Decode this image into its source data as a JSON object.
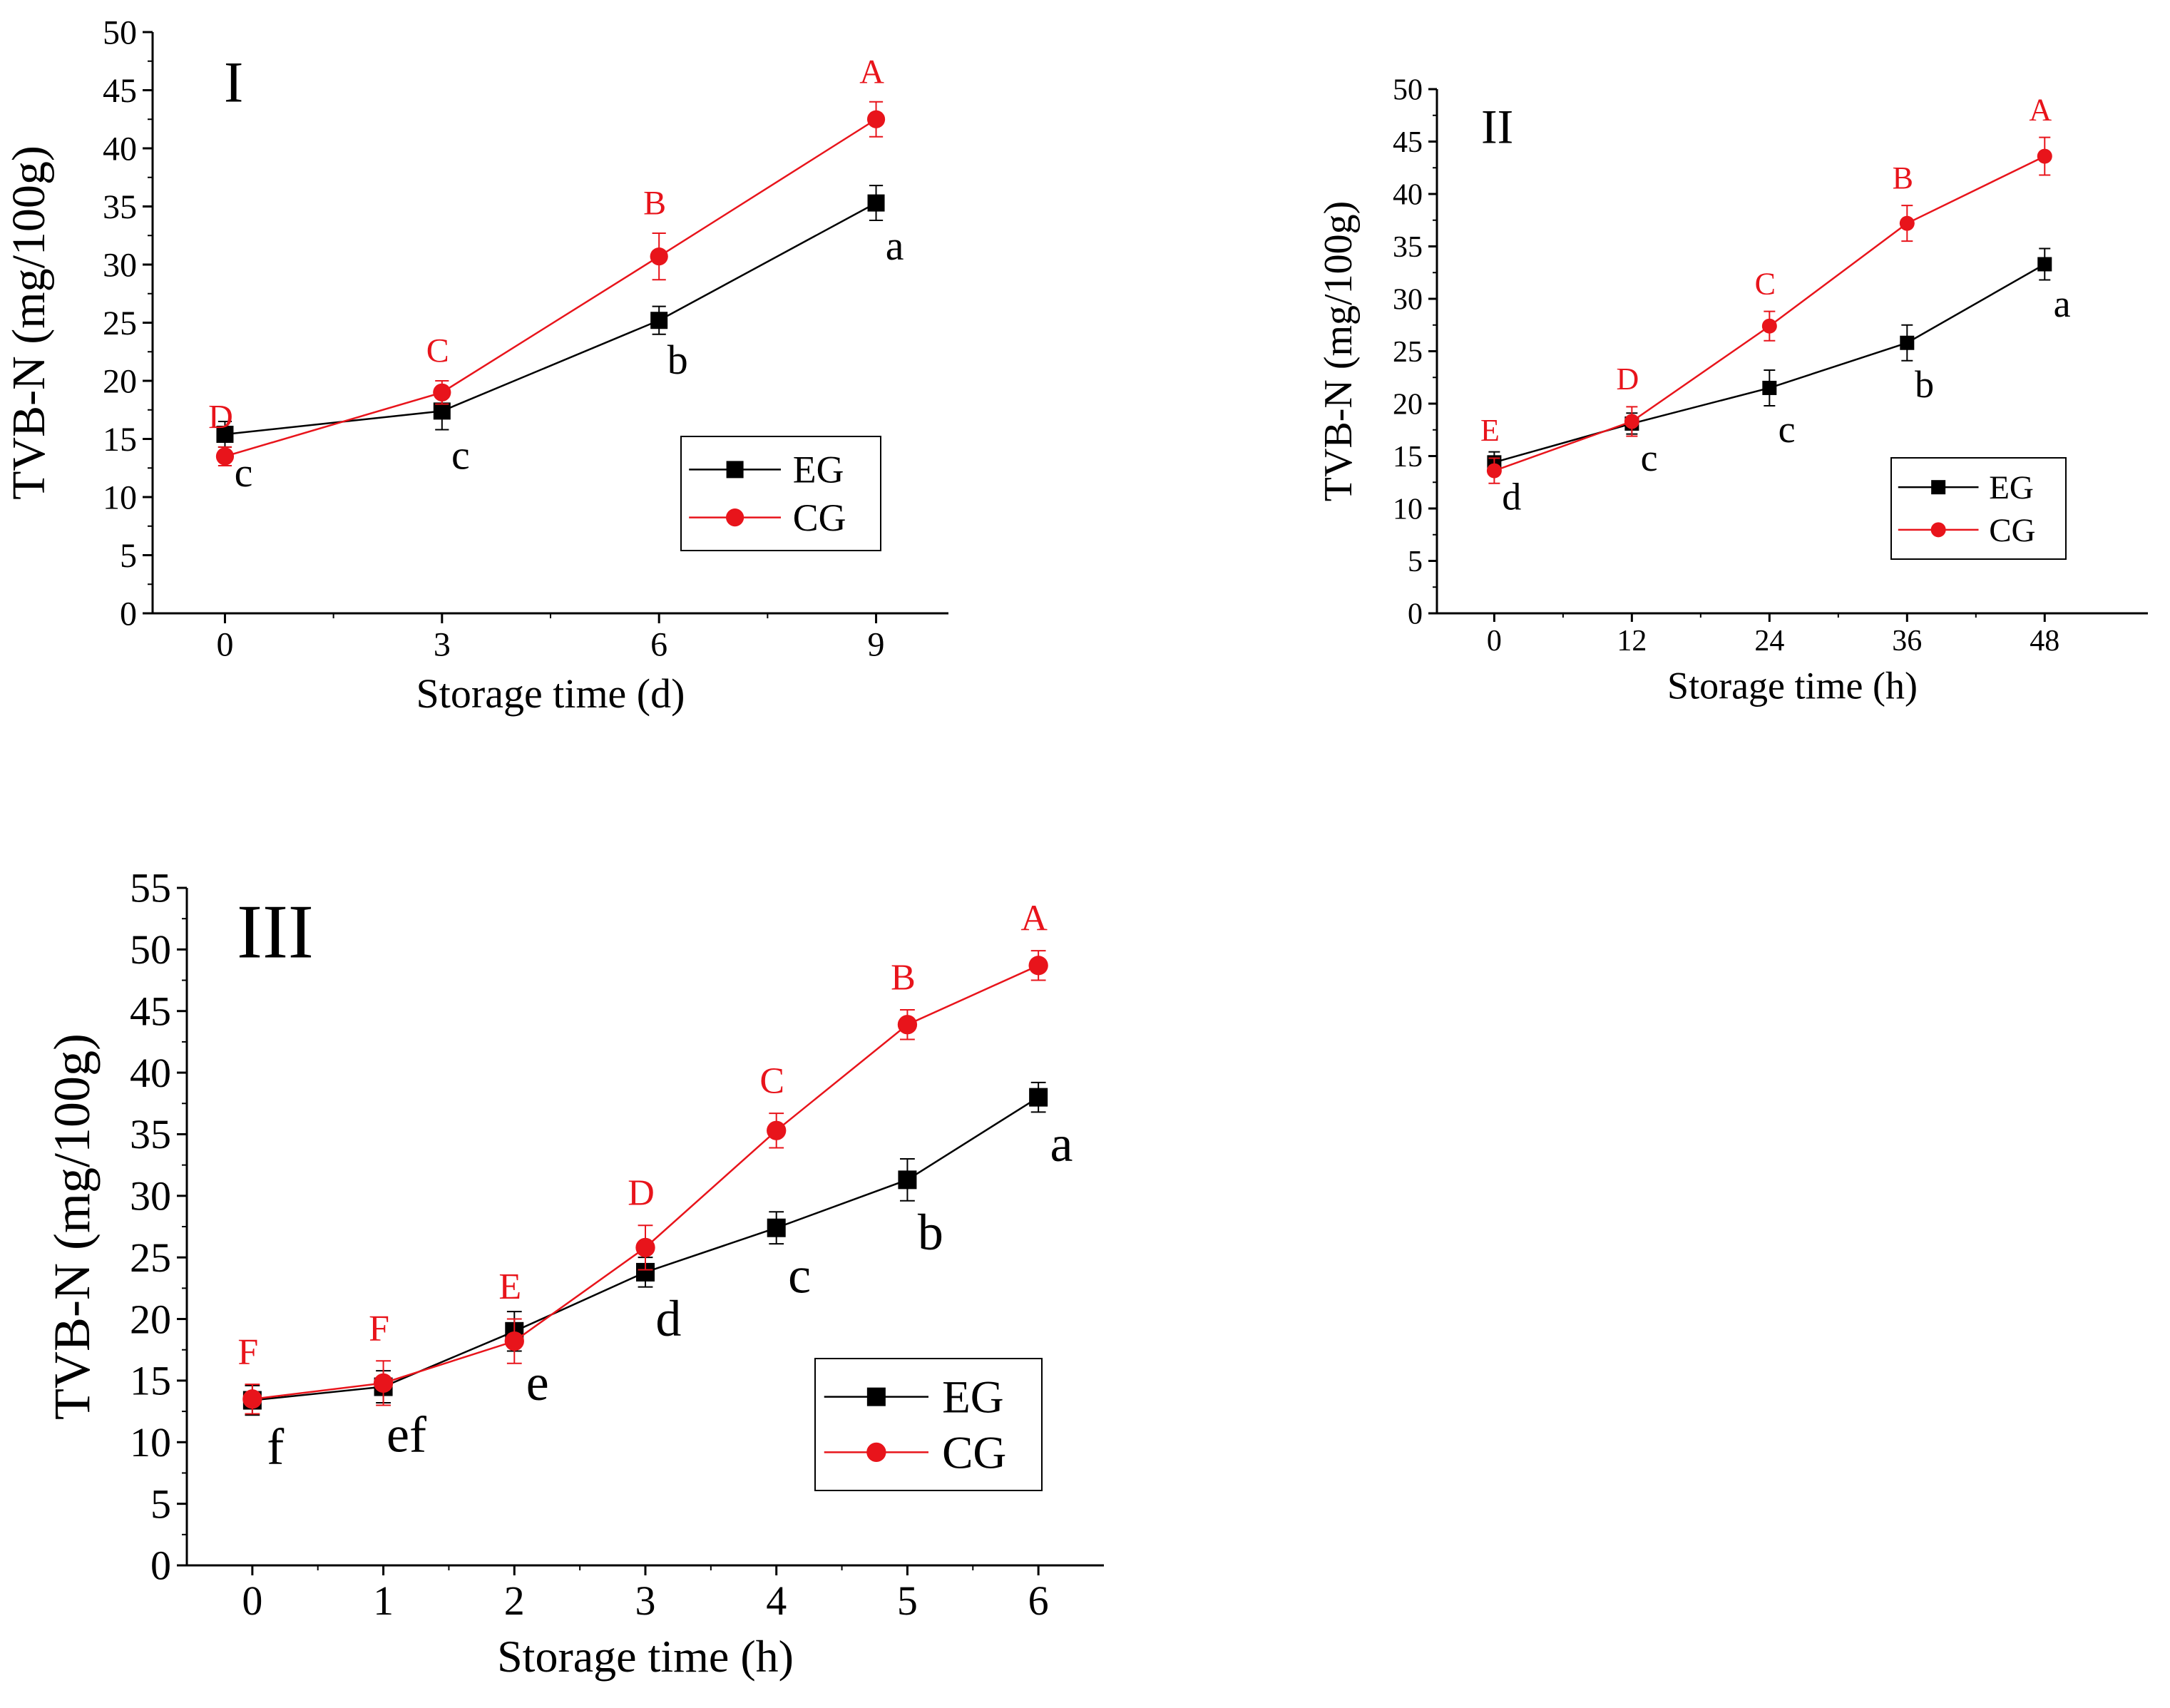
{
  "colors": {
    "eg": "#000000",
    "cg": "#e8141b",
    "axis": "#000000"
  },
  "chart_data": [
    {
      "type": "line",
      "panel_label": "I",
      "xlabel": "Storage time (d)",
      "ylabel": "TVB-N (mg/100g)",
      "x": [
        0,
        3,
        6,
        9
      ],
      "x_ticks": [
        "0",
        "3",
        "6",
        "9"
      ],
      "xlim": [
        -1,
        10
      ],
      "ylim": [
        0,
        50
      ],
      "y_ticks": [
        0,
        5,
        10,
        15,
        20,
        25,
        30,
        35,
        40,
        45,
        50
      ],
      "grid": false,
      "legend_position": "bottom-right",
      "series": [
        {
          "name": "EG",
          "marker": "square",
          "values": [
            15.4,
            17.4,
            25.2,
            35.3
          ],
          "errors": [
            1.1,
            1.6,
            1.2,
            1.5
          ],
          "letters": [
            "c",
            "c",
            "b",
            "a"
          ]
        },
        {
          "name": "CG",
          "marker": "circle",
          "values": [
            13.5,
            19.0,
            30.7,
            42.5
          ],
          "errors": [
            0.8,
            1.0,
            2.0,
            1.5
          ],
          "letters": [
            "D",
            "C",
            "B",
            "A"
          ]
        }
      ]
    },
    {
      "type": "line",
      "panel_label": "II",
      "xlabel": "Storage time (h)",
      "ylabel": "TVB-N (mg/100g)",
      "x": [
        0,
        12,
        24,
        36,
        48
      ],
      "x_ticks": [
        "0",
        "12",
        "24",
        "36",
        "48"
      ],
      "xlim": [
        -5,
        57
      ],
      "ylim": [
        0,
        50
      ],
      "y_ticks": [
        0,
        5,
        10,
        15,
        20,
        25,
        30,
        35,
        40,
        45,
        50
      ],
      "grid": false,
      "legend_position": "bottom-right",
      "series": [
        {
          "name": "EG",
          "marker": "square",
          "values": [
            14.4,
            18.1,
            21.5,
            25.8,
            33.3
          ],
          "errors": [
            1.0,
            1.0,
            1.7,
            1.7,
            1.5
          ],
          "letters": [
            "d",
            "c",
            "c",
            "b",
            "a"
          ]
        },
        {
          "name": "CG",
          "marker": "circle",
          "values": [
            13.6,
            18.3,
            27.4,
            37.2,
            43.6
          ],
          "errors": [
            1.2,
            1.4,
            1.4,
            1.7,
            1.8
          ],
          "letters": [
            "E",
            "D",
            "C",
            "B",
            "A"
          ]
        }
      ]
    },
    {
      "type": "line",
      "panel_label": "III",
      "xlabel": "Storage time (h)",
      "ylabel": "TVB-N (mg/100g)",
      "x": [
        0,
        1,
        2,
        3,
        4,
        5,
        6
      ],
      "x_ticks": [
        "0",
        "1",
        "2",
        "3",
        "4",
        "5",
        "6"
      ],
      "xlim": [
        -0.5,
        6.5
      ],
      "ylim": [
        0,
        55
      ],
      "y_ticks": [
        0,
        5,
        10,
        15,
        20,
        25,
        30,
        35,
        40,
        45,
        50,
        55
      ],
      "grid": false,
      "legend_position": "bottom-right",
      "series": [
        {
          "name": "EG",
          "marker": "square",
          "values": [
            13.4,
            14.5,
            19.0,
            23.8,
            27.4,
            31.3,
            38.0
          ],
          "errors": [
            1.2,
            1.3,
            1.6,
            1.2,
            1.3,
            1.7,
            1.2
          ],
          "letters": [
            "f",
            "ef",
            "e",
            "d",
            "c",
            "b",
            "a"
          ]
        },
        {
          "name": "CG",
          "marker": "circle",
          "values": [
            13.5,
            14.8,
            18.2,
            25.8,
            35.3,
            43.9,
            48.7
          ],
          "errors": [
            1.2,
            1.8,
            1.8,
            1.8,
            1.4,
            1.2,
            1.2
          ],
          "letters": [
            "F",
            "F",
            "E",
            "D",
            "C",
            "B",
            "A"
          ]
        }
      ]
    }
  ]
}
